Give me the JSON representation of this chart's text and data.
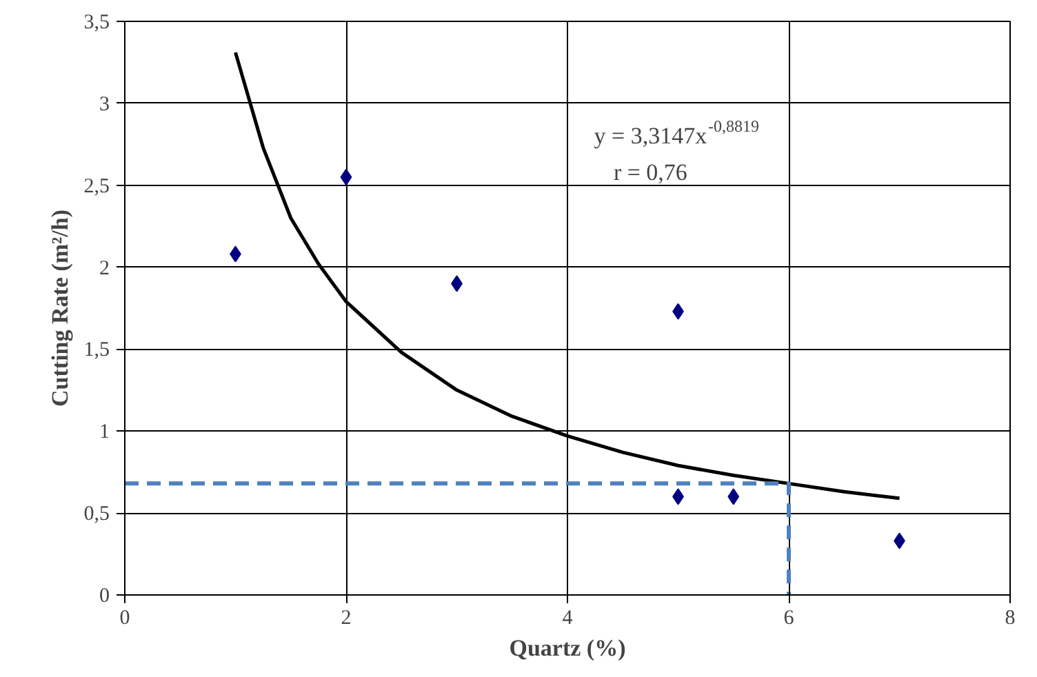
{
  "chart_data": {
    "type": "scatter",
    "xlabel": "Quartz (%)",
    "ylabel": "Cutting Rate (m²/h)",
    "xlim": [
      0,
      8
    ],
    "ylim": [
      0,
      3.5
    ],
    "xticks": [
      0,
      2,
      4,
      6,
      8
    ],
    "yticks": [
      0,
      {
        "value": 0.5,
        "label": "0,5"
      },
      1,
      {
        "value": 1.5,
        "label": "1,5"
      },
      2,
      {
        "value": 2.5,
        "label": "2,5"
      },
      3,
      {
        "value": 3.5,
        "label": "3,5"
      }
    ],
    "grid": true,
    "marker": "diamond",
    "series": [
      {
        "color": "#000080",
        "x": [
          1,
          2,
          3,
          5,
          5,
          5.5,
          7
        ],
        "values": [
          2.08,
          2.55,
          1.9,
          1.73,
          0.6,
          0.6,
          0.33
        ]
      },
      {
        "type": "line",
        "color": "#000000",
        "line_style": "solid",
        "marker": "none",
        "x": [
          1,
          1.25,
          1.5,
          1.75,
          2,
          2.5,
          3,
          3.5,
          4,
          4.5,
          5,
          5.5,
          6,
          6.5,
          7
        ],
        "values": [
          3.31,
          2.73,
          2.3,
          2.02,
          1.79,
          1.48,
          1.25,
          1.09,
          0.97,
          0.87,
          0.79,
          0.73,
          0.68,
          0.63,
          0.59
        ]
      },
      {
        "type": "line",
        "color": "#4f81bd",
        "line_style": "dashed",
        "marker": "none",
        "x": [
          0,
          6,
          6
        ],
        "values": [
          0.68,
          0.68,
          0
        ]
      }
    ],
    "annotations": [
      "y = 3,3147x$^{-0,8819}$",
      "r = 0,76"
    ]
  }
}
